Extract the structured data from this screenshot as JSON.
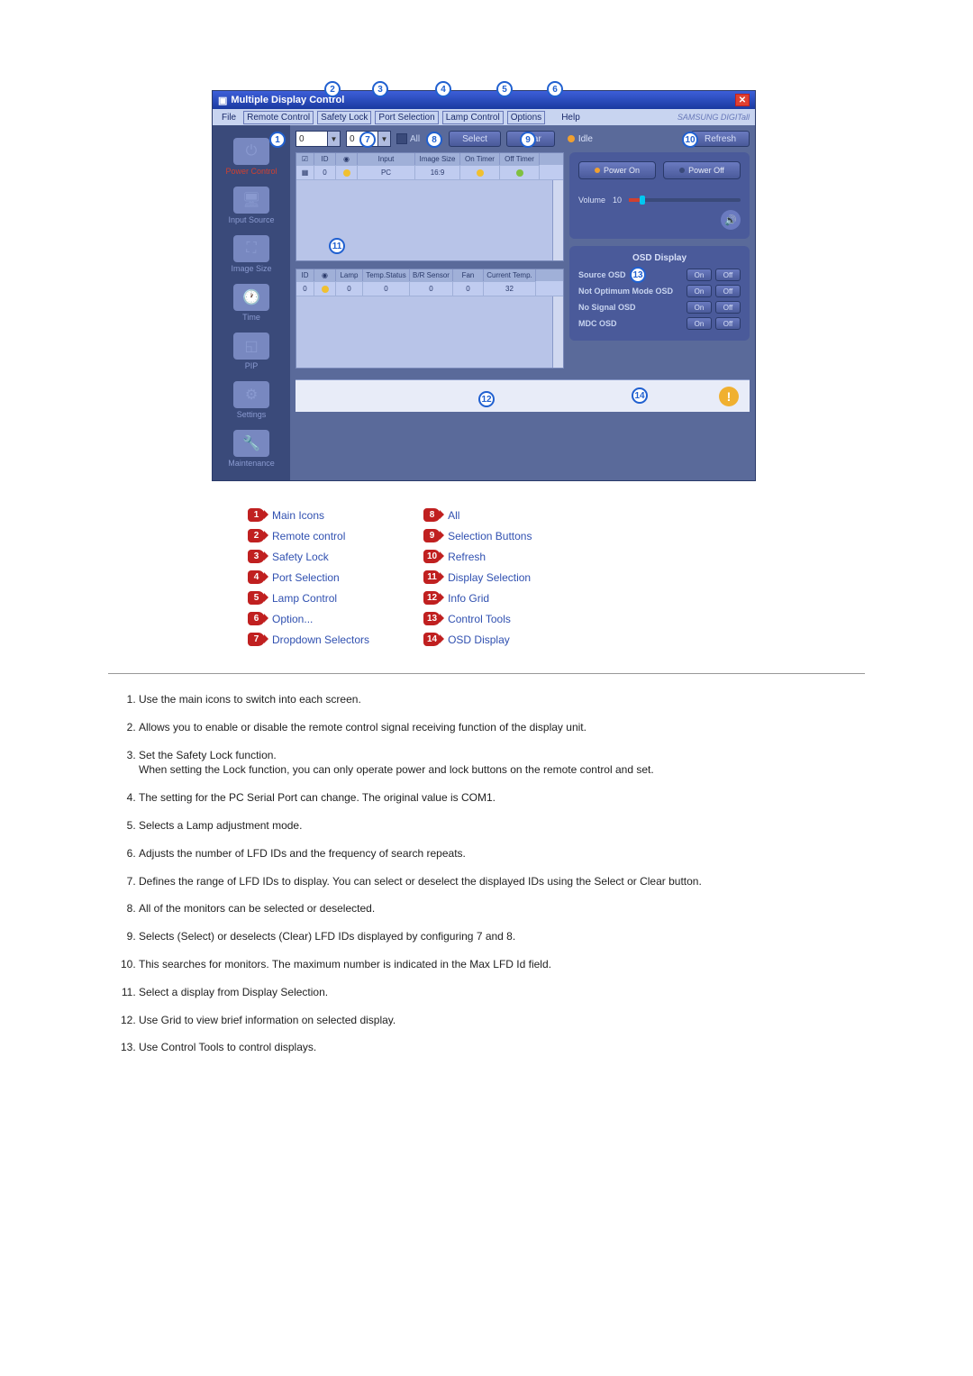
{
  "window": {
    "title": "Multiple Display Control",
    "brand": "SAMSUNG DIGITall"
  },
  "menu": {
    "file": "File",
    "remote": "Remote Control",
    "safety": "Safety Lock",
    "port": "Port Selection",
    "lamp": "Lamp Control",
    "options": "Options",
    "help": "Help"
  },
  "sidebar": {
    "items": [
      {
        "label": "Power Control"
      },
      {
        "label": "Input Source"
      },
      {
        "label": "Image Size"
      },
      {
        "label": "Time"
      },
      {
        "label": "PIP"
      },
      {
        "label": "Settings"
      },
      {
        "label": "Maintenance"
      }
    ]
  },
  "toolbar": {
    "range_from": "0",
    "range_to": "0",
    "all_label": "All",
    "select": "Select",
    "clear": "Clear",
    "idle": "Idle",
    "refresh": "Refresh"
  },
  "grid1": {
    "headers": [
      "",
      "ID",
      "",
      "Input",
      "Image Size",
      "On Timer",
      "Off Timer"
    ],
    "widths": [
      20,
      24,
      24,
      64,
      50,
      44,
      44
    ],
    "row": {
      "id": "0",
      "input": "PC",
      "size": "16:9"
    }
  },
  "grid2": {
    "headers": [
      "ID",
      "",
      "Lamp",
      "Temp.Status",
      "B/R Sensor",
      "Fan",
      "Current Temp."
    ],
    "widths": [
      20,
      24,
      30,
      52,
      48,
      34,
      58
    ],
    "row": {
      "id": "0",
      "lamp": "0",
      "temp_status": "0",
      "br": "0",
      "fan": "0",
      "cur": "32"
    }
  },
  "power": {
    "on": "Power On",
    "off": "Power Off"
  },
  "volume": {
    "label": "Volume",
    "value": "10"
  },
  "osd": {
    "title": "OSD Display",
    "rows": [
      {
        "label": "Source OSD"
      },
      {
        "label": "Not Optimum Mode OSD"
      },
      {
        "label": "No Signal OSD"
      },
      {
        "label": "MDC OSD"
      }
    ],
    "on": "On",
    "off": "Off"
  },
  "callouts": {
    "c1": "1",
    "c2": "2",
    "c3": "3",
    "c4": "4",
    "c5": "5",
    "c6": "6",
    "c7": "7",
    "c8": "8",
    "c9": "9",
    "c10": "10",
    "c11": "11",
    "c12": "12",
    "c13": "13",
    "c14": "14"
  },
  "legend": {
    "left": [
      {
        "n": "1",
        "label": "Main Icons"
      },
      {
        "n": "2",
        "label": "Remote control"
      },
      {
        "n": "3",
        "label": "Safety Lock"
      },
      {
        "n": "4",
        "label": "Port Selection"
      },
      {
        "n": "5",
        "label": "Lamp Control"
      },
      {
        "n": "6",
        "label": "Option..."
      },
      {
        "n": "7",
        "label": "Dropdown Selectors"
      }
    ],
    "right": [
      {
        "n": "8",
        "label": "All"
      },
      {
        "n": "9",
        "label": "Selection Buttons"
      },
      {
        "n": "10",
        "label": "Refresh"
      },
      {
        "n": "11",
        "label": "Display Selection"
      },
      {
        "n": "12",
        "label": "Info Grid"
      },
      {
        "n": "13",
        "label": "Control Tools"
      },
      {
        "n": "14",
        "label": "OSD Display"
      }
    ]
  },
  "notes": [
    "Use the main icons to switch into each screen.",
    "Allows you to enable or disable the remote control signal receiving function of the display unit.",
    "Set the Safety Lock function.\nWhen setting the Lock function, you can only operate power and lock buttons on the remote control and set.",
    "The setting for the PC Serial Port can change. The original value is COM1.",
    "Selects a Lamp adjustment mode.",
    "Adjusts the number of LFD IDs and the frequency of search repeats.",
    "Defines the range of LFD IDs to display. You can select or deselect the displayed IDs using the Select or Clear button.",
    "All of the monitors can be selected or deselected.",
    "Selects (Select) or deselects (Clear) LFD IDs displayed by configuring 7 and 8.",
    "This searches for monitors. The maximum number is indicated in the Max LFD Id field.",
    "Select a display from Display Selection.",
    "Use Grid to view brief information on selected display.",
    "Use Control Tools to control displays."
  ]
}
